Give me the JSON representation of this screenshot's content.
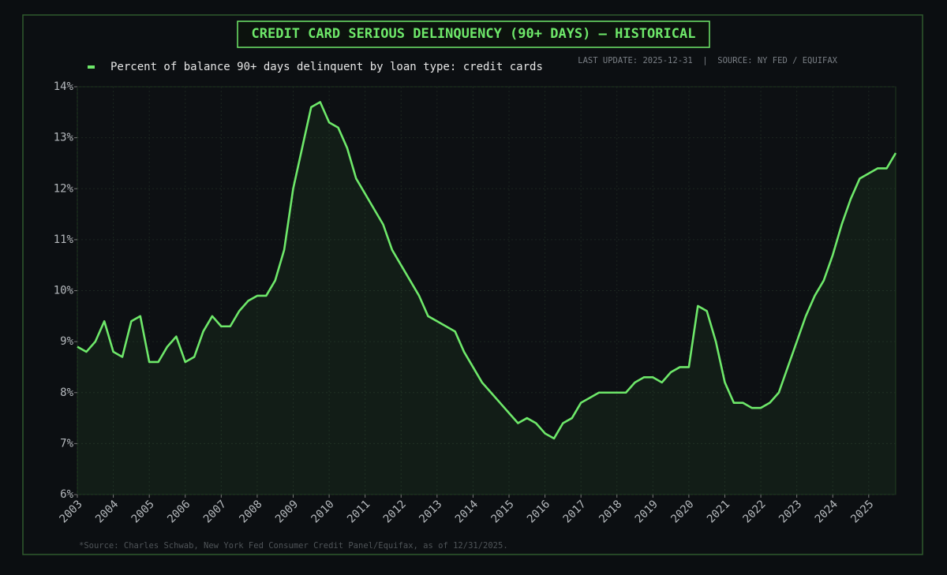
{
  "chart_data": {
    "type": "line",
    "title": "CREDIT CARD SERIOUS DELINQUENCY (90+ DAYS) — HISTORICAL",
    "subtitle": "LAST UPDATE: 2025-12-31  |  SOURCE: NY FED / EQUIFAX",
    "footnote": "*Source: Charles Schwab, New York Fed Consumer Credit Panel/Equifax, as of 12/31/2025.",
    "x": [
      2003,
      2003.25,
      2003.5,
      2003.75,
      2004,
      2004.25,
      2004.5,
      2004.75,
      2005,
      2005.25,
      2005.5,
      2005.75,
      2006,
      2006.25,
      2006.5,
      2006.75,
      2007,
      2007.25,
      2007.5,
      2007.75,
      2008,
      2008.25,
      2008.5,
      2008.75,
      2009,
      2009.25,
      2009.5,
      2009.75,
      2010,
      2010.25,
      2010.5,
      2010.75,
      2011,
      2011.25,
      2011.5,
      2011.75,
      2012,
      2012.25,
      2012.5,
      2012.75,
      2013,
      2013.25,
      2013.5,
      2013.75,
      2014,
      2014.25,
      2014.5,
      2014.75,
      2015,
      2015.25,
      2015.5,
      2015.75,
      2016,
      2016.25,
      2016.5,
      2016.75,
      2017,
      2017.25,
      2017.5,
      2017.75,
      2018,
      2018.25,
      2018.5,
      2018.75,
      2019,
      2019.25,
      2019.5,
      2019.75,
      2020,
      2020.25,
      2020.5,
      2020.75,
      2021,
      2021.25,
      2021.5,
      2021.75,
      2022,
      2022.25,
      2022.5,
      2022.75,
      2023,
      2023.25,
      2023.5,
      2023.75,
      2024,
      2024.25,
      2024.5,
      2024.75,
      2025,
      2025.25,
      2025.5,
      2025.75
    ],
    "series": [
      {
        "name": "Percent of balance 90+ days delinquent by loan type: credit cards",
        "color": "#6ee86a",
        "values": [
          8.9,
          8.8,
          9.0,
          9.4,
          8.8,
          8.7,
          9.4,
          9.5,
          8.6,
          8.6,
          8.9,
          9.1,
          8.6,
          8.7,
          9.2,
          9.5,
          9.3,
          9.3,
          9.6,
          9.8,
          9.9,
          9.9,
          10.2,
          10.8,
          12.0,
          12.8,
          13.6,
          13.7,
          13.3,
          13.2,
          12.8,
          12.2,
          11.9,
          11.6,
          11.3,
          10.8,
          10.5,
          10.2,
          9.9,
          9.5,
          9.4,
          9.3,
          9.2,
          8.8,
          8.5,
          8.2,
          8.0,
          7.8,
          7.6,
          7.4,
          7.5,
          7.4,
          7.2,
          7.1,
          7.4,
          7.5,
          7.8,
          7.9,
          8.0,
          8.0,
          8.0,
          8.0,
          8.2,
          8.3,
          8.3,
          8.2,
          8.4,
          8.5,
          8.5,
          9.7,
          9.6,
          9.0,
          8.2,
          7.8,
          7.8,
          7.7,
          7.7,
          7.8,
          8.0,
          8.5,
          9.0,
          9.5,
          9.9,
          10.2,
          10.7,
          11.3,
          11.8,
          12.2,
          12.3,
          12.4,
          12.4,
          12.7
        ]
      }
    ],
    "xlim": [
      2003,
      2025.75
    ],
    "xticks": [
      2003,
      2004,
      2005,
      2006,
      2007,
      2008,
      2009,
      2010,
      2011,
      2012,
      2013,
      2014,
      2015,
      2016,
      2017,
      2018,
      2019,
      2020,
      2021,
      2022,
      2023,
      2024,
      2025
    ],
    "ylim": [
      6,
      14
    ],
    "yticks": [
      {
        "value": 6,
        "label": "6%"
      },
      {
        "value": 7,
        "label": "7%"
      },
      {
        "value": 8,
        "label": "8%"
      },
      {
        "value": 9,
        "label": "9%"
      },
      {
        "value": 10,
        "label": "10%"
      },
      {
        "value": 11,
        "label": "11%"
      },
      {
        "value": 12,
        "label": "12%"
      },
      {
        "value": 13,
        "label": "13%"
      },
      {
        "value": 14,
        "label": "14%"
      }
    ],
    "grid": true
  }
}
